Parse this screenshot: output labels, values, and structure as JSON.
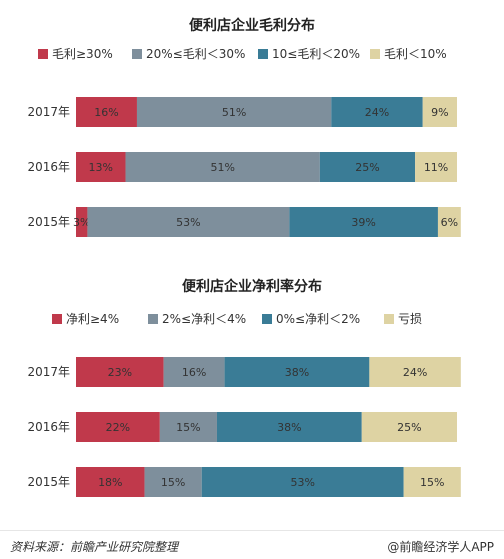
{
  "chart_data": [
    {
      "type": "bar",
      "orientation": "horizontal",
      "stacked": true,
      "title": "便利店企业毛利分布",
      "categories": [
        "2017年",
        "2016年",
        "2015年"
      ],
      "series": [
        {
          "name": "毛利≥30%",
          "values": [
            16,
            13,
            3
          ],
          "color": "#c0394b"
        },
        {
          "name": "20%≤毛利＜30%",
          "values": [
            51,
            51,
            53
          ],
          "color": "#7e8f9c"
        },
        {
          "name": "10≤毛利＜20%",
          "values": [
            24,
            25,
            39
          ],
          "color": "#3a7c96"
        },
        {
          "name": "毛利＜10%",
          "values": [
            9,
            11,
            6
          ],
          "color": "#ded3a3"
        }
      ],
      "legend": "top",
      "xlim": [
        0,
        100
      ],
      "grid": false
    },
    {
      "type": "bar",
      "orientation": "horizontal",
      "stacked": true,
      "title": "便利店企业净利率分布",
      "categories": [
        "2017年",
        "2016年",
        "2015年"
      ],
      "series": [
        {
          "name": "净利≥4%",
          "values": [
            23,
            22,
            18
          ],
          "color": "#c0394b"
        },
        {
          "name": "2%≤净利＜4%",
          "values": [
            16,
            15,
            15
          ],
          "color": "#7e8f9c"
        },
        {
          "name": "0%≤净利＜2%",
          "values": [
            38,
            38,
            53
          ],
          "color": "#3a7c96"
        },
        {
          "name": "亏损",
          "values": [
            24,
            25,
            15
          ],
          "color": "#ded3a3"
        }
      ],
      "legend": "top",
      "xlim": [
        0,
        100
      ],
      "grid": false
    }
  ],
  "footer": {
    "source": "资料来源：前瞻产业研究院整理",
    "brand": "@前瞻经济学人APP"
  }
}
